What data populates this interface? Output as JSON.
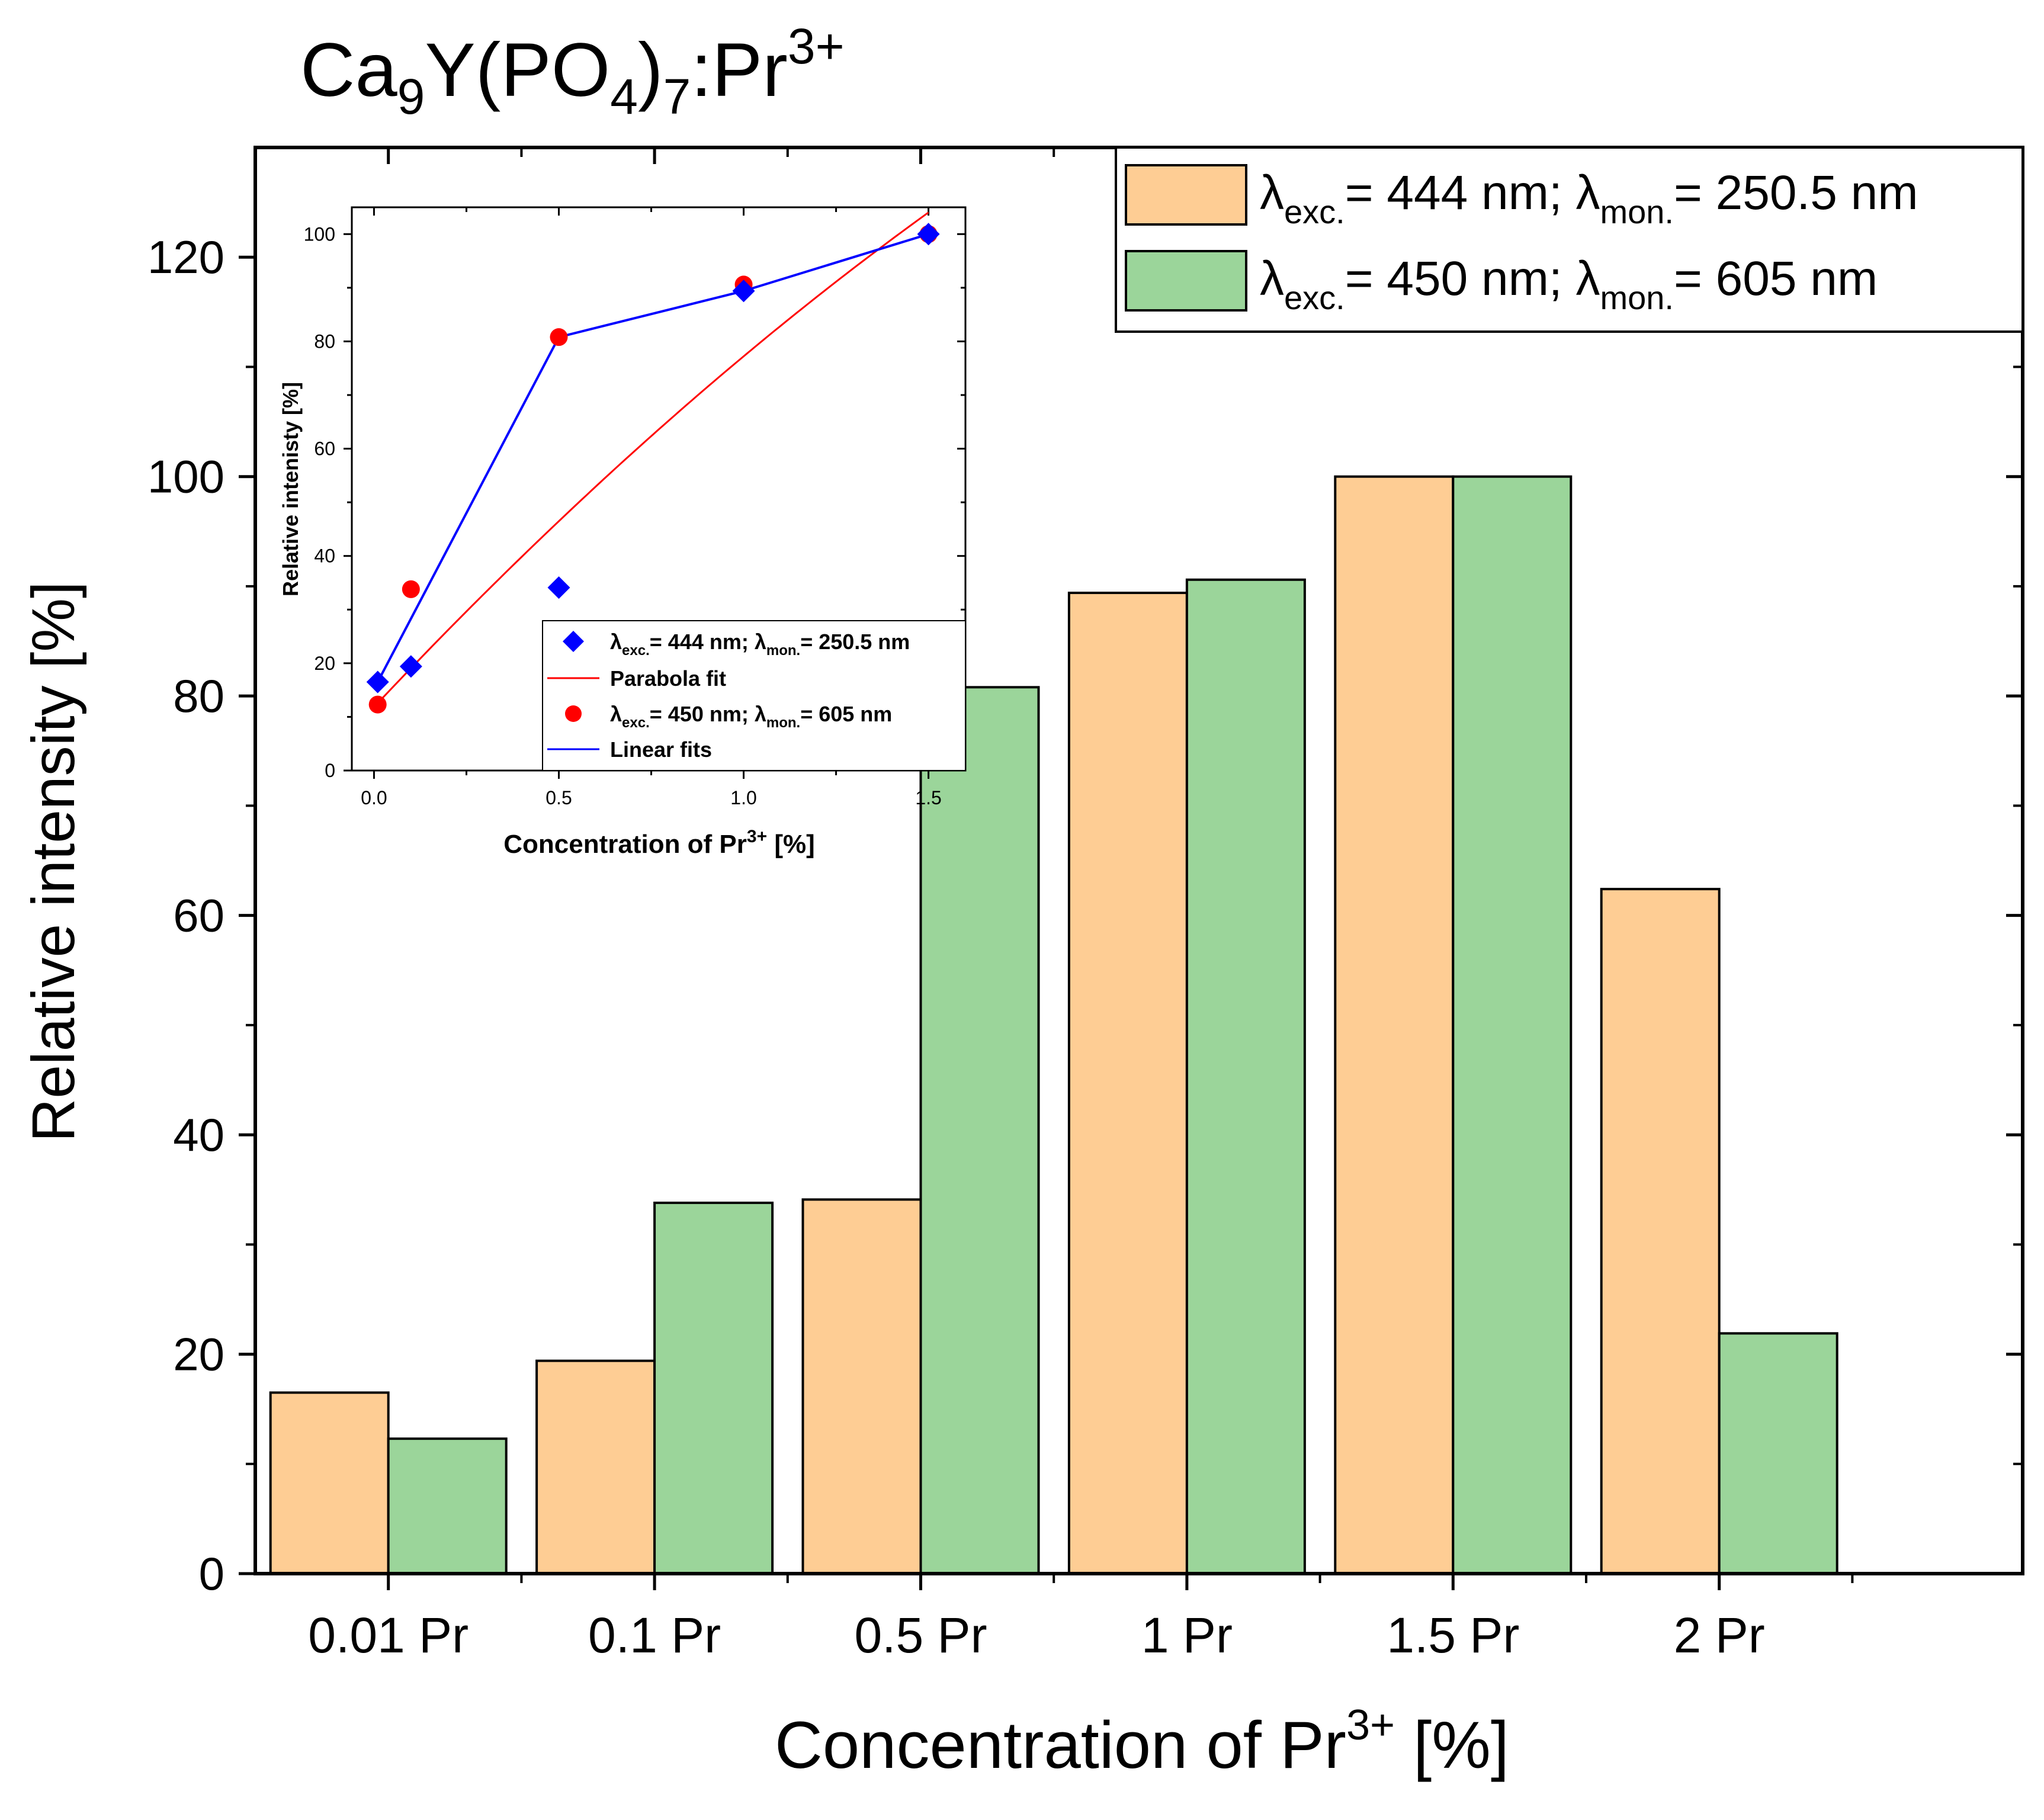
{
  "chart_data": [
    {
      "type": "bar",
      "title": {
        "base": "Ca",
        "sub1": "9",
        "mid": "Y(PO",
        "sub2": "4",
        "close": ")",
        "sub3": "7",
        "tail": ":Pr",
        "sup": "3+"
      },
      "xlabel": {
        "base": "Concentration of Pr",
        "sup": "3+",
        "tail": " [%]"
      },
      "ylabel": "Relative intensity [%]",
      "ylim": [
        0,
        130
      ],
      "yticks": [
        "0",
        "20",
        "40",
        "60",
        "80",
        "100",
        "120"
      ],
      "categories": [
        "0.01 Pr",
        "0.1 Pr",
        "0.5 Pr",
        "1 Pr",
        "1.5 Pr",
        "2 Pr"
      ],
      "series": [
        {
          "name": "λexc.= 444 nm; λmon.= 250.5 nm",
          "legend": {
            "l1": "λ",
            "s1": "exc.",
            "m": "= 444 nm; λ",
            "s2": "mon.",
            "e": "= 250.5 nm"
          },
          "color": "#FECD94",
          "values": [
            16.5,
            19.4,
            34.1,
            89.4,
            100.0,
            62.4
          ]
        },
        {
          "name": "λexc.= 450 nm; λmon.= 605 nm",
          "legend": {
            "l1": "λ",
            "s1": "exc.",
            "m": "= 450 nm; λ",
            "s2": "mon.",
            "e": "= 605 nm"
          },
          "color": "#9BD59A",
          "values": [
            12.3,
            33.8,
            80.8,
            90.6,
            100.0,
            21.9
          ]
        }
      ],
      "legend_position": "top-right",
      "grid": false
    },
    {
      "type": "scatter",
      "role": "inset",
      "xlabel": {
        "base": "Concentration of Pr",
        "sup": "3+",
        "tail": " [%]"
      },
      "ylabel": "Relative intenisty [%]",
      "xlim": [
        -0.06,
        1.6
      ],
      "ylim": [
        0,
        105
      ],
      "xticks": [
        "0.0",
        "0.5",
        "1.0",
        "1.5"
      ],
      "yticks": [
        "0",
        "20",
        "40",
        "60",
        "80",
        "100"
      ],
      "series": [
        {
          "name": "λexc.= 444 nm; λmon.= 250.5 nm",
          "legend": {
            "l1": "λ",
            "s1": "exc.",
            "m": "= 444 nm; λ",
            "s2": "mon.",
            "e": "= 250.5 nm"
          },
          "marker": "diamond",
          "color": "#0000FF",
          "x": [
            0.01,
            0.1,
            0.5,
            1.0,
            1.5
          ],
          "y": [
            16.5,
            19.4,
            34.1,
            89.4,
            100.0
          ]
        },
        {
          "name": "Parabola fit",
          "legend": {
            "text": "Parabola fit"
          },
          "line": true,
          "color": "#FF0000",
          "fit": "quadratic",
          "x_range": [
            0.01,
            1.5
          ]
        },
        {
          "name": "λexc.= 450 nm; λmon.= 605 nm",
          "legend": {
            "l1": "λ",
            "s1": "exc.",
            "m": "= 450 nm; λ",
            "s2": "mon.",
            "e": "= 605 nm"
          },
          "marker": "circle",
          "color": "#FF0000",
          "x": [
            0.01,
            0.1,
            0.5,
            1.0,
            1.5
          ],
          "y": [
            12.3,
            33.8,
            80.8,
            90.6,
            100.0
          ]
        },
        {
          "name": "Linear fits",
          "legend": {
            "text": "Linear fits"
          },
          "line": true,
          "color": "#0000FF",
          "x": [
            0.01,
            0.5,
            1.0,
            1.5
          ],
          "y": [
            16.5,
            80.8,
            89.4,
            100.0
          ]
        }
      ]
    }
  ]
}
